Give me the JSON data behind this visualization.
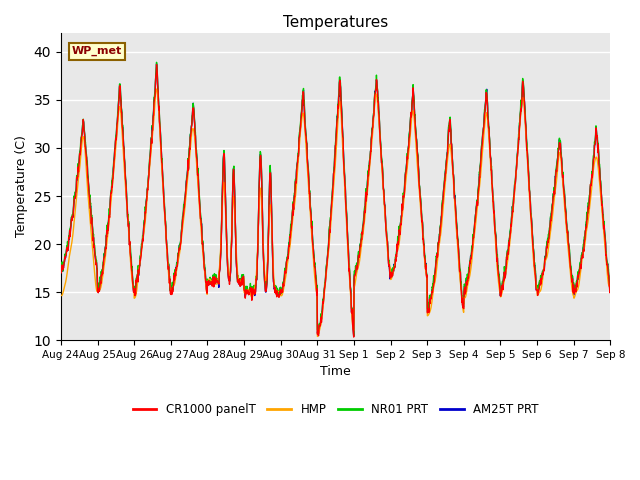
{
  "title": "Temperatures",
  "xlabel": "Time",
  "ylabel": "Temperature (C)",
  "ylim": [
    10,
    42
  ],
  "yticks": [
    10,
    15,
    20,
    25,
    30,
    35,
    40
  ],
  "annotation_text": "WP_met",
  "bg_color": "#e8e8e8",
  "series": {
    "CR1000_panelT": {
      "color": "#ff0000",
      "label": "CR1000 panelT"
    },
    "HMP": {
      "color": "#ffa500",
      "label": "HMP"
    },
    "NR01_PRT": {
      "color": "#00cc00",
      "label": "NR01 PRT"
    },
    "AM25T_PRT": {
      "color": "#0000cc",
      "label": "AM25T PRT"
    }
  },
  "x_tick_labels": [
    "Aug 24",
    "Aug 25",
    "Aug 26",
    "Aug 27",
    "Aug 28",
    "Aug 29",
    "Aug 30",
    "Aug 31",
    "Sep 1",
    "Sep 2",
    "Sep 3",
    "Sep 4",
    "Sep 5",
    "Sep 6",
    "Sep 7",
    "Sep 8"
  ],
  "lw": 1.0
}
